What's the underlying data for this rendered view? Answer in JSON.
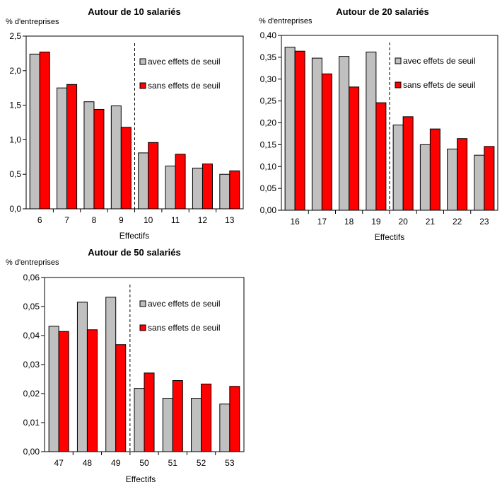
{
  "colors": {
    "avec": "#c0c0c0",
    "sans": "#ff0000",
    "axis": "#000000"
  },
  "chart_data": [
    {
      "type": "bar",
      "title": "Autour de 10 salariés",
      "ylabel": "% d'entreprises",
      "xlabel": "Effectifs",
      "categories": [
        "6",
        "7",
        "8",
        "9",
        "10",
        "11",
        "12",
        "13"
      ],
      "ylim": [
        0,
        2.5
      ],
      "yticks": [
        "0,0",
        "0,5",
        "1,0",
        "1,5",
        "2,0",
        "2,5"
      ],
      "threshold_after_index": 3,
      "legend": [
        "avec effets de seuil",
        "sans effets de seuil"
      ],
      "series": [
        {
          "name": "avec effets de seuil",
          "values": [
            2.24,
            1.75,
            1.55,
            1.49,
            0.81,
            0.62,
            0.59,
            0.5
          ]
        },
        {
          "name": "sans effets de seuil",
          "values": [
            2.27,
            1.8,
            1.44,
            1.18,
            0.96,
            0.79,
            0.65,
            0.55
          ]
        }
      ]
    },
    {
      "type": "bar",
      "title": "Autour de 20 salariés",
      "ylabel": "% d'entreprises",
      "xlabel": "Effectifs",
      "categories": [
        "16",
        "17",
        "18",
        "19",
        "20",
        "21",
        "22",
        "23"
      ],
      "ylim": [
        0,
        0.4
      ],
      "yticks": [
        "0,00",
        "0,05",
        "0,10",
        "0,15",
        "0,20",
        "0,25",
        "0,30",
        "0,35",
        "0,40"
      ],
      "threshold_after_index": 3,
      "legend": [
        "avec effets de seuil",
        "sans effets de seuil"
      ],
      "series": [
        {
          "name": "avec effets de seuil",
          "values": [
            0.373,
            0.348,
            0.352,
            0.362,
            0.195,
            0.15,
            0.14,
            0.126
          ]
        },
        {
          "name": "sans effets de seuil",
          "values": [
            0.364,
            0.312,
            0.282,
            0.246,
            0.214,
            0.186,
            0.164,
            0.146
          ]
        }
      ]
    },
    {
      "type": "bar",
      "title": "Autour de 50 salariés",
      "ylabel": "% d'entreprises",
      "xlabel": "Effectifs",
      "categories": [
        "47",
        "48",
        "49",
        "50",
        "51",
        "52",
        "53"
      ],
      "ylim": [
        0,
        0.06
      ],
      "yticks": [
        "0,00",
        "0,01",
        "0,02",
        "0,03",
        "0,04",
        "0,05",
        "0,06"
      ],
      "threshold_after_index": 2,
      "legend": [
        "avec effets de seuil",
        "sans effets de seuil"
      ],
      "series": [
        {
          "name": "avec effets de seuil",
          "values": [
            0.0432,
            0.0515,
            0.0532,
            0.0218,
            0.0184,
            0.0184,
            0.0164
          ]
        },
        {
          "name": "sans effets de seuil",
          "values": [
            0.0414,
            0.042,
            0.0369,
            0.0271,
            0.0245,
            0.0233,
            0.0225
          ]
        }
      ]
    }
  ]
}
